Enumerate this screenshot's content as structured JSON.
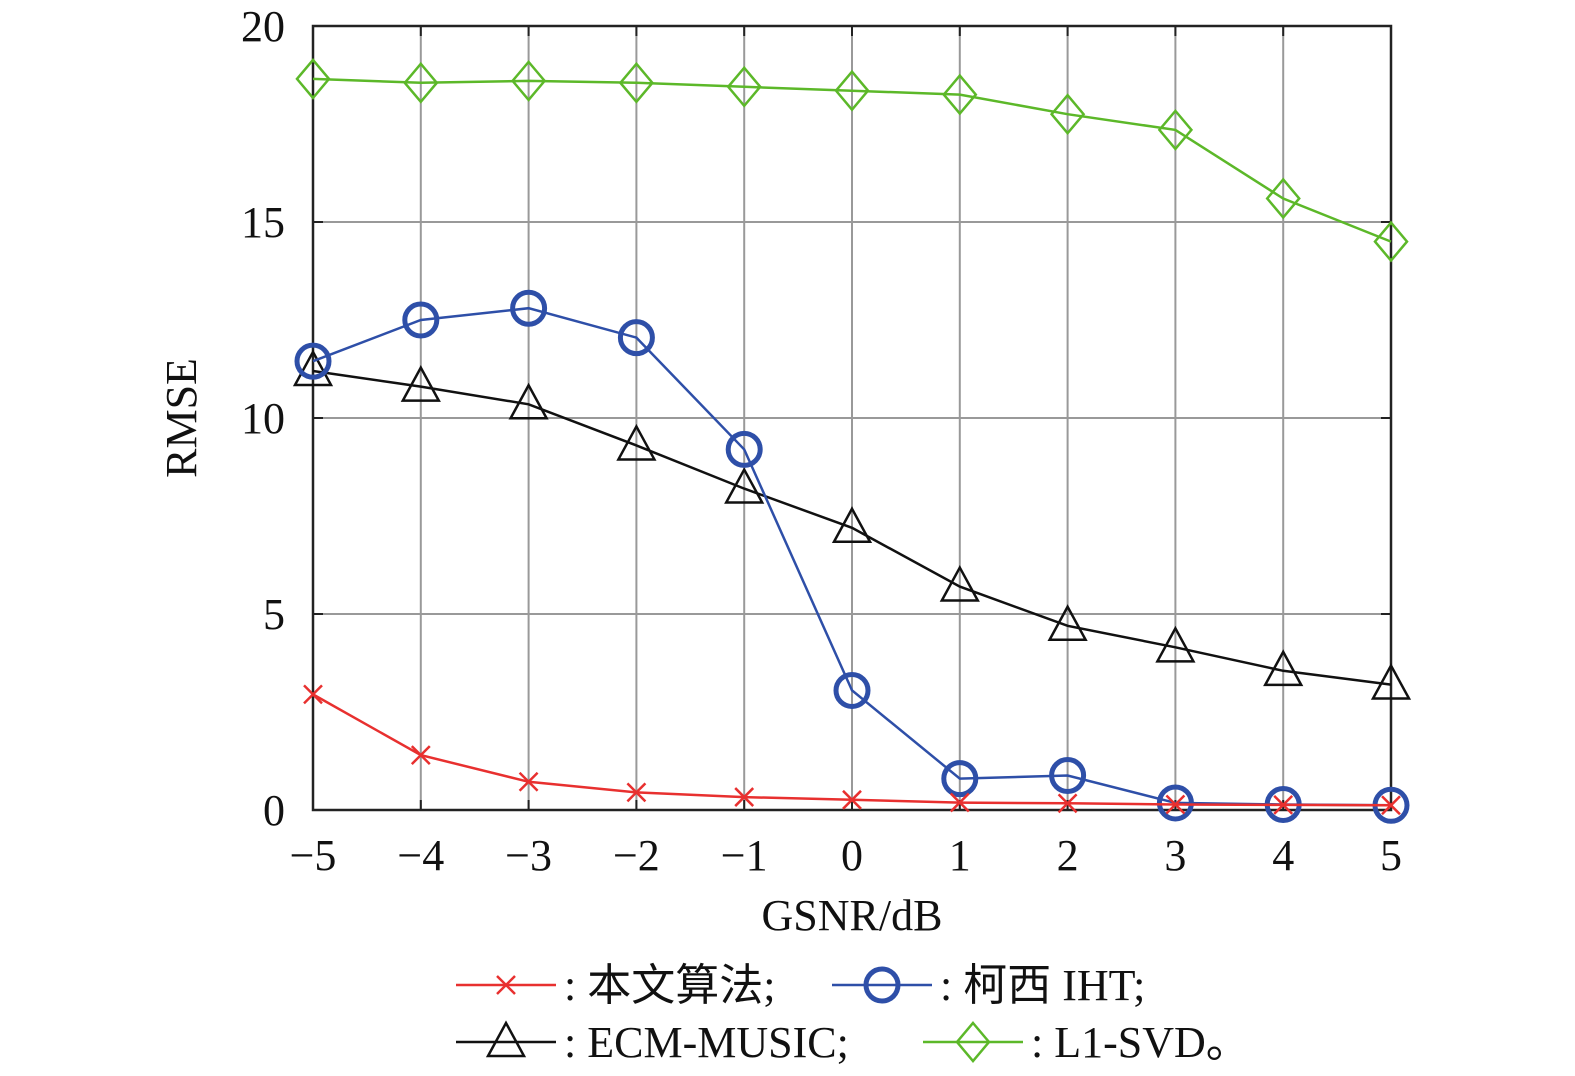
{
  "chart_data": {
    "type": "line",
    "xlabel": "GSNR/dB",
    "ylabel": "RMSE",
    "xlim": [
      -5,
      5
    ],
    "ylim": [
      0,
      20
    ],
    "x": [
      -5,
      -4,
      -3,
      -2,
      -1,
      0,
      1,
      2,
      3,
      4,
      5
    ],
    "x_tick_labels": [
      "−5",
      "−4",
      "−3",
      "−2",
      "−1",
      "0",
      "1",
      "2",
      "3",
      "4",
      "5"
    ],
    "y_ticks": [
      0,
      5,
      10,
      15,
      20
    ],
    "y_tick_labels": [
      "0",
      "5",
      "10",
      "15",
      "20"
    ],
    "grid": true,
    "legend_position": "bottom",
    "series": [
      {
        "name": "本文算法",
        "legend_label": ": 本文算法;",
        "marker": "x",
        "color": "#e8302f",
        "values": [
          2.95,
          1.4,
          0.72,
          0.45,
          0.33,
          0.26,
          0.19,
          0.17,
          0.14,
          0.13,
          0.12
        ]
      },
      {
        "name": "柯西 IHT",
        "legend_label": ": 柯西 IHT;",
        "marker": "circle",
        "color": "#2e4fa8",
        "values": [
          11.45,
          12.5,
          12.8,
          12.05,
          9.2,
          3.05,
          0.8,
          0.88,
          0.18,
          0.14,
          0.12
        ]
      },
      {
        "name": "ECM-MUSIC",
        "legend_label": ": ECM-MUSIC;",
        "marker": "triangle",
        "color": "#111111",
        "values": [
          11.2,
          10.8,
          10.35,
          9.3,
          8.2,
          7.2,
          5.7,
          4.7,
          4.15,
          3.55,
          3.2
        ]
      },
      {
        "name": "L1-SVD",
        "legend_label": ": L1-SVD。",
        "marker": "diamond",
        "color": "#5cb829",
        "values": [
          18.65,
          18.55,
          18.6,
          18.55,
          18.45,
          18.35,
          18.25,
          17.75,
          17.35,
          15.6,
          14.5
        ]
      }
    ]
  }
}
